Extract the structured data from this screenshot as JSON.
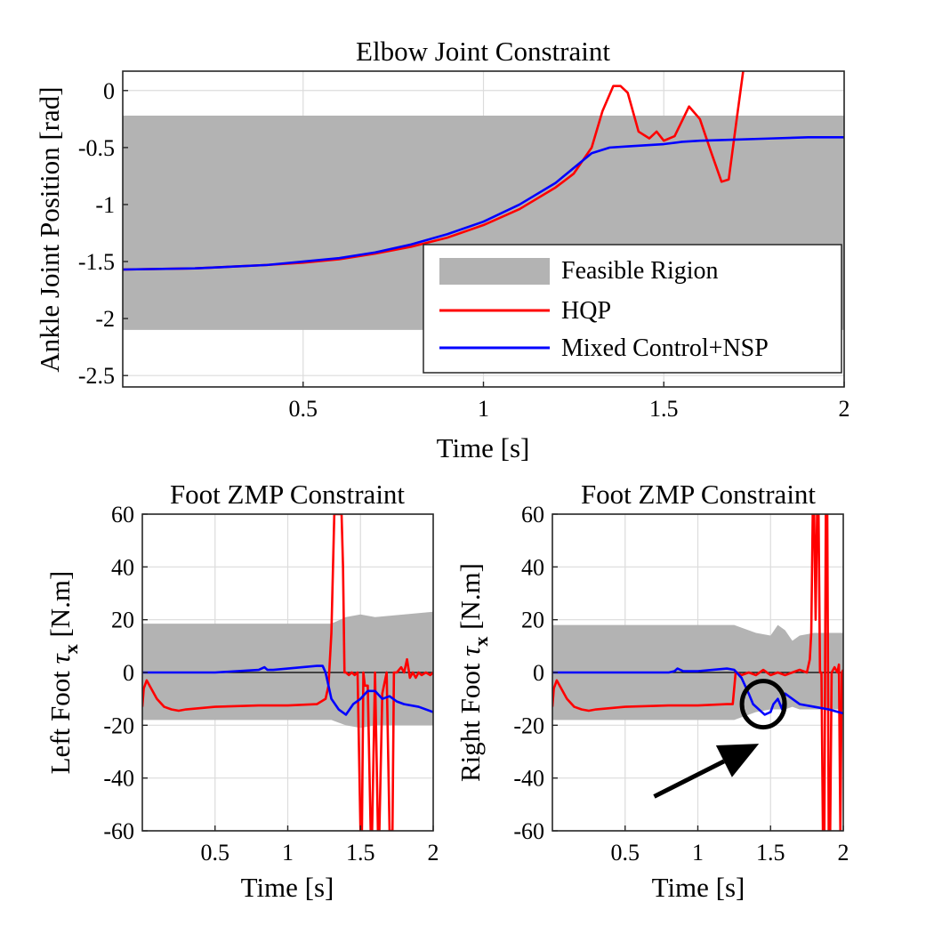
{
  "chart_data": [
    {
      "type": "line",
      "title": "Elbow Joint Constraint",
      "xlabel": "Time [s]",
      "ylabel": "Ankle Joint Position [rad]",
      "xlim": [
        0,
        2
      ],
      "ylim": [
        -2.6,
        0.17
      ],
      "xticks": [
        0.5,
        1,
        1.5,
        2
      ],
      "xtick_labels": [
        "0.5",
        "1",
        "1.5",
        "2"
      ],
      "yticks": [
        0,
        -0.5,
        -1,
        -1.5,
        -2,
        -2.5
      ],
      "ytick_labels": [
        "0",
        "-0.5",
        "-1",
        "-1.5",
        "-2",
        "-2.5"
      ],
      "grid": true,
      "legend_position": "bottom-right",
      "band": {
        "name": "Feasible Rigion",
        "color": "#b3b3b3",
        "x": [
          0,
          2
        ],
        "lower": [
          -2.1,
          -2.1
        ],
        "upper": [
          -0.22,
          -0.22
        ]
      },
      "series": [
        {
          "name": "HQP",
          "color": "#ff0000",
          "x": [
            0,
            0.2,
            0.4,
            0.5,
            0.6,
            0.7,
            0.8,
            0.9,
            1.0,
            1.1,
            1.2,
            1.25,
            1.3,
            1.33,
            1.36,
            1.38,
            1.4,
            1.43,
            1.46,
            1.48,
            1.5,
            1.53,
            1.57,
            1.6,
            1.63,
            1.66,
            1.68,
            1.7,
            1.72
          ],
          "y": [
            -1.57,
            -1.56,
            -1.53,
            -1.51,
            -1.48,
            -1.43,
            -1.37,
            -1.29,
            -1.18,
            -1.04,
            -0.85,
            -0.73,
            -0.5,
            -0.18,
            0.04,
            0.04,
            -0.02,
            -0.36,
            -0.42,
            -0.36,
            -0.44,
            -0.4,
            -0.14,
            -0.25,
            -0.53,
            -0.8,
            -0.78,
            -0.3,
            0.17
          ]
        },
        {
          "name": "Mixed Control+NSP",
          "color": "#0000ff",
          "x": [
            0,
            0.2,
            0.4,
            0.5,
            0.6,
            0.7,
            0.8,
            0.9,
            1.0,
            1.1,
            1.2,
            1.25,
            1.3,
            1.35,
            1.4,
            1.5,
            1.55,
            1.6,
            1.7,
            1.8,
            1.9,
            2.0
          ],
          "y": [
            -1.57,
            -1.56,
            -1.53,
            -1.5,
            -1.47,
            -1.42,
            -1.35,
            -1.26,
            -1.15,
            -1.0,
            -0.81,
            -0.68,
            -0.55,
            -0.5,
            -0.49,
            -0.47,
            -0.45,
            -0.44,
            -0.43,
            -0.42,
            -0.41,
            -0.41
          ]
        }
      ]
    },
    {
      "type": "line",
      "title": "Foot ZMP Constraint",
      "xlabel": "Time [s]",
      "ylabel": "Left Foot τx [N.m]",
      "ylabel_main": "Left Foot ",
      "ylabel_symbol": "τ",
      "ylabel_sub": "x",
      "ylabel_unit": " [N.m]",
      "xlim": [
        0,
        2
      ],
      "ylim": [
        -60,
        60
      ],
      "xticks": [
        0.5,
        1,
        1.5,
        2
      ],
      "xtick_labels": [
        "0.5",
        "1",
        "1.5",
        "2"
      ],
      "yticks": [
        60,
        40,
        20,
        0,
        -20,
        -40,
        -60
      ],
      "ytick_labels": [
        "60",
        "40",
        "20",
        "0",
        "-20",
        "-40",
        "-60"
      ],
      "grid": true,
      "band": {
        "color": "#b3b3b3",
        "x": [
          0,
          1.3,
          1.4,
          1.5,
          1.6,
          1.8,
          2.0
        ],
        "upper": [
          18.5,
          18.5,
          21,
          22,
          21,
          22,
          23
        ],
        "lower": [
          -18,
          -18,
          -20,
          -21,
          -20,
          -20,
          -20
        ]
      },
      "series": [
        {
          "color": "#ff0000",
          "x": [
            0,
            0.01,
            0.03,
            0.06,
            0.1,
            0.15,
            0.2,
            0.25,
            0.3,
            0.5,
            0.8,
            1.0,
            1.2,
            1.26,
            1.28,
            1.3,
            1.32,
            1.33,
            1.34,
            1.35,
            1.36,
            1.37,
            1.38,
            1.39,
            1.4,
            1.42,
            1.44,
            1.46,
            1.48,
            1.5,
            1.51,
            1.52,
            1.53,
            1.55,
            1.57,
            1.58,
            1.6,
            1.62,
            1.63,
            1.65,
            1.68,
            1.7,
            1.72,
            1.73,
            1.75,
            1.78,
            1.8,
            1.82,
            1.84,
            1.86,
            1.88,
            1.9,
            1.92,
            1.95,
            1.98,
            2.0
          ],
          "y": [
            -13,
            -6,
            -3,
            -6,
            -10,
            -13,
            -14,
            -14.5,
            -14,
            -13,
            -12.5,
            -12.5,
            -12,
            -10,
            -5,
            15,
            60,
            60,
            60,
            60,
            60,
            60,
            40,
            0,
            0,
            -1,
            0,
            -1,
            0,
            -60,
            -60,
            0,
            -5,
            -5,
            -60,
            -60,
            0,
            -60,
            -60,
            -8,
            0,
            -60,
            -60,
            0,
            0,
            2,
            0,
            5,
            -2,
            0,
            -2,
            0,
            -1,
            0,
            -1,
            0
          ]
        },
        {
          "color": "#0000ff",
          "x": [
            0,
            0.3,
            0.5,
            0.8,
            0.84,
            0.86,
            0.9,
            1.0,
            1.1,
            1.2,
            1.24,
            1.26,
            1.28,
            1.3,
            1.35,
            1.4,
            1.45,
            1.5,
            1.55,
            1.6,
            1.65,
            1.7,
            1.75,
            1.8,
            1.9,
            2.0
          ],
          "y": [
            0,
            0,
            0,
            1,
            2,
            1,
            1,
            1.5,
            2,
            2.5,
            2.5,
            0,
            -5,
            -10,
            -14,
            -16,
            -12,
            -10,
            -7,
            -7,
            -10,
            -9,
            -11,
            -12,
            -13,
            -15
          ]
        }
      ]
    },
    {
      "type": "line",
      "title": "Foot ZMP Constraint",
      "xlabel": "Time [s]",
      "ylabel": "Right Foot τx [N.m]",
      "ylabel_main": "Right Foot ",
      "ylabel_symbol": "τ",
      "ylabel_sub": "x",
      "ylabel_unit": " [N.m]",
      "xlim": [
        0,
        2
      ],
      "ylim": [
        -60,
        60
      ],
      "xticks": [
        0.5,
        1,
        1.5,
        2
      ],
      "xtick_labels": [
        "0.5",
        "1",
        "1.5",
        "2"
      ],
      "yticks": [
        60,
        40,
        20,
        0,
        -20,
        -40,
        -60
      ],
      "ytick_labels": [
        "60",
        "40",
        "20",
        "0",
        "-20",
        "-40",
        "-60"
      ],
      "grid": true,
      "band": {
        "color": "#b3b3b3",
        "x": [
          0,
          1.25,
          1.3,
          1.4,
          1.5,
          1.55,
          1.6,
          1.65,
          1.7,
          1.8,
          2.0
        ],
        "upper": [
          18,
          18,
          17,
          15,
          14,
          18,
          16,
          12,
          14,
          15,
          15
        ],
        "lower": [
          -18,
          -18,
          -17,
          -15,
          -14,
          -14,
          -14,
          -13,
          -14,
          -14,
          -14
        ]
      },
      "annotation": {
        "circle_center": [
          1.45,
          -12
        ],
        "arrow_from": [
          0.7,
          -47
        ],
        "arrow_to": [
          1.42,
          -27
        ]
      },
      "series": [
        {
          "color": "#ff0000",
          "x": [
            0,
            0.01,
            0.03,
            0.06,
            0.1,
            0.15,
            0.2,
            0.25,
            0.3,
            0.5,
            0.8,
            1.0,
            1.2,
            1.24,
            1.26,
            1.27,
            1.3,
            1.35,
            1.4,
            1.45,
            1.5,
            1.55,
            1.6,
            1.65,
            1.7,
            1.75,
            1.77,
            1.78,
            1.79,
            1.8,
            1.81,
            1.82,
            1.83,
            1.84,
            1.85,
            1.86,
            1.87,
            1.88,
            1.89,
            1.9,
            1.91,
            1.92,
            1.94,
            1.96,
            1.97,
            1.98,
            1.99,
            2.0
          ],
          "y": [
            -13,
            -6,
            -3,
            -6,
            -10,
            -13,
            -14,
            -14.5,
            -14,
            -13,
            -12.5,
            -12.5,
            -12,
            -12,
            0,
            0,
            -1,
            0,
            -1,
            1,
            -1,
            0,
            -1,
            0,
            1,
            0,
            5,
            15,
            60,
            60,
            20,
            60,
            60,
            0,
            0,
            -60,
            -60,
            60,
            60,
            -60,
            -60,
            0,
            2,
            0,
            3,
            -60,
            0,
            1
          ]
        },
        {
          "color": "#0000ff",
          "x": [
            0,
            0.5,
            0.8,
            0.84,
            0.86,
            0.9,
            1.0,
            1.1,
            1.2,
            1.25,
            1.3,
            1.35,
            1.38,
            1.42,
            1.46,
            1.5,
            1.52,
            1.55,
            1.58,
            1.6,
            1.65,
            1.7,
            1.8,
            1.9,
            2.0
          ],
          "y": [
            0,
            0,
            0,
            0.5,
            1.5,
            0.5,
            0.5,
            1,
            1.5,
            1,
            -2,
            -8,
            -12,
            -14,
            -16,
            -15,
            -12,
            -10,
            -14,
            -8,
            -10,
            -12,
            -13,
            -14,
            -15.5
          ]
        }
      ]
    }
  ]
}
